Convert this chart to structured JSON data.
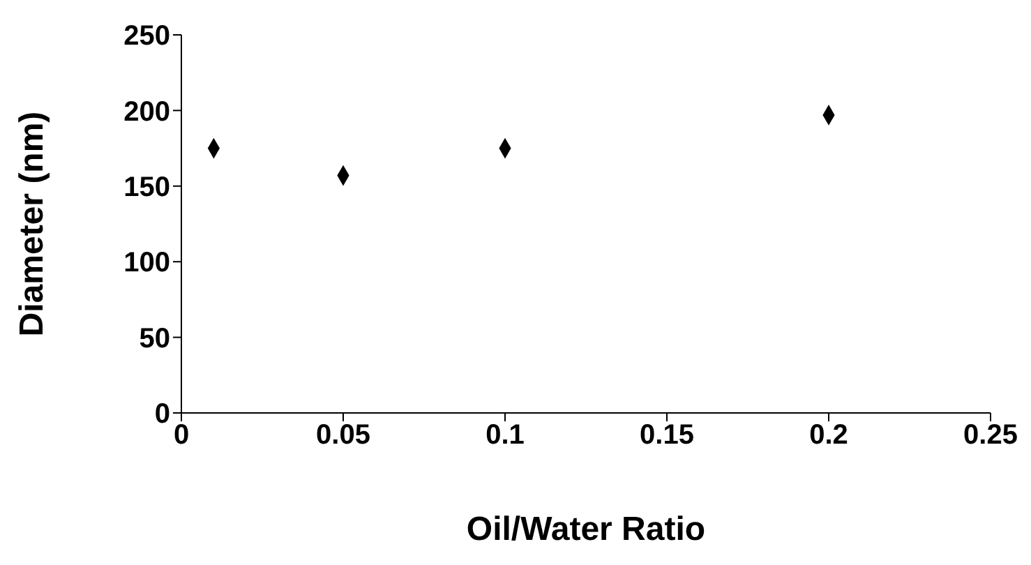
{
  "chart_data": {
    "type": "scatter",
    "xlabel": "Oil/Water Ratio",
    "ylabel": "Diameter (nm)",
    "x": [
      0.01,
      0.05,
      0.1,
      0.2
    ],
    "series": [
      {
        "color": "#000000",
        "values": [
          175,
          157,
          175,
          197
        ]
      }
    ],
    "xlim": [
      0,
      0.25
    ],
    "xticks": [
      0,
      0.05,
      0.1,
      0.15,
      0.2,
      0.25
    ],
    "ylim": [
      0,
      250
    ],
    "yticks": [
      0,
      50,
      100,
      150,
      200,
      250
    ],
    "grid": false,
    "legend": false,
    "marker": "diamond"
  }
}
